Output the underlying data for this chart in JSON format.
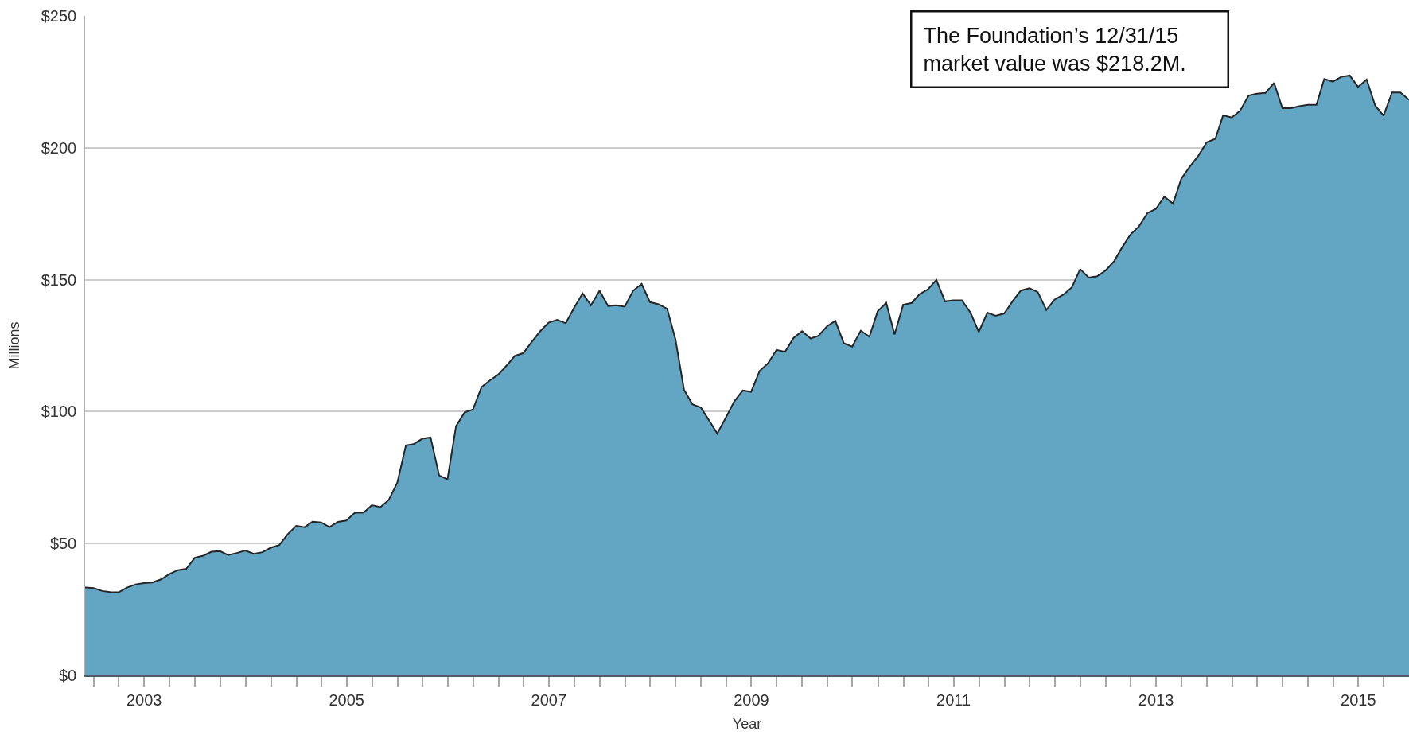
{
  "chart_data": {
    "type": "area",
    "xlabel": "Year",
    "ylabel": "Millions",
    "annotations": [
      "The Foundation’s 12/31/15\nmarket value was $218.2M."
    ],
    "x": [
      "2002-11-30",
      "2002-12-31",
      "2003-01-31",
      "2003-02-28",
      "2003-03-31",
      "2003-04-30",
      "2003-05-31",
      "2003-06-30",
      "2003-07-31",
      "2003-08-31",
      "2003-09-30",
      "2003-10-31",
      "2003-11-30",
      "2003-12-31",
      "2004-01-31",
      "2004-02-29",
      "2004-03-31",
      "2004-04-30",
      "2004-05-31",
      "2004-06-30",
      "2004-07-31",
      "2004-08-31",
      "2004-09-30",
      "2004-10-31",
      "2004-11-30",
      "2004-12-31",
      "2005-01-31",
      "2005-02-28",
      "2005-03-31",
      "2005-04-30",
      "2005-05-31",
      "2005-06-30",
      "2005-07-31",
      "2005-08-31",
      "2005-09-30",
      "2005-10-31",
      "2005-11-30",
      "2005-12-31",
      "2006-01-31",
      "2006-02-28",
      "2006-03-31",
      "2006-04-30",
      "2006-05-31",
      "2006-06-30",
      "2006-07-31",
      "2006-08-31",
      "2006-09-30",
      "2006-10-31",
      "2006-11-30",
      "2006-12-31",
      "2007-01-31",
      "2007-02-28",
      "2007-03-31",
      "2007-04-30",
      "2007-05-31",
      "2007-06-30",
      "2007-07-31",
      "2007-08-31",
      "2007-09-30",
      "2007-10-31",
      "2007-11-30",
      "2007-12-31",
      "2008-01-31",
      "2008-02-29",
      "2008-03-31",
      "2008-04-30",
      "2008-05-31",
      "2008-06-30",
      "2008-07-31",
      "2008-08-31",
      "2008-09-30",
      "2008-10-31",
      "2008-11-30",
      "2008-12-31",
      "2009-01-31",
      "2009-02-28",
      "2009-03-31",
      "2009-04-30",
      "2009-05-31",
      "2009-06-30",
      "2009-07-31",
      "2009-08-31",
      "2009-09-30",
      "2009-10-31",
      "2009-11-30",
      "2009-12-31",
      "2010-01-31",
      "2010-02-28",
      "2010-03-31",
      "2010-04-30",
      "2010-05-31",
      "2010-06-30",
      "2010-07-31",
      "2010-08-31",
      "2010-09-30",
      "2010-10-31",
      "2010-11-30",
      "2010-12-31",
      "2011-01-31",
      "2011-02-28",
      "2011-03-31",
      "2011-04-30",
      "2011-05-31",
      "2011-06-30",
      "2011-07-31",
      "2011-08-31",
      "2011-09-30",
      "2011-10-31",
      "2011-11-30",
      "2011-12-31",
      "2012-01-31",
      "2012-02-29",
      "2012-03-31",
      "2012-04-30",
      "2012-05-31",
      "2012-06-30",
      "2012-07-31",
      "2012-08-31",
      "2012-09-30",
      "2012-10-31",
      "2012-11-30",
      "2012-12-31",
      "2013-01-31",
      "2013-02-28",
      "2013-03-31",
      "2013-04-30",
      "2013-05-31",
      "2013-06-30",
      "2013-07-31",
      "2013-08-31",
      "2013-09-30",
      "2013-10-31",
      "2013-11-30",
      "2013-12-31",
      "2014-01-31",
      "2014-02-28",
      "2014-03-31",
      "2014-04-30",
      "2014-05-31",
      "2014-06-30",
      "2014-07-31",
      "2014-08-31",
      "2014-09-30",
      "2014-10-31",
      "2014-11-30",
      "2014-12-31",
      "2015-01-31",
      "2015-02-28",
      "2015-03-31",
      "2015-04-30",
      "2015-05-31",
      "2015-06-30",
      "2015-07-31",
      "2015-08-31",
      "2015-09-30",
      "2015-10-31",
      "2015-11-30",
      "2015-12-31"
    ],
    "series": [
      {
        "color": "#63a6c4",
        "values": [
          33.3,
          33.1,
          32.0,
          31.6,
          31.5,
          33.3,
          34.5,
          35.0,
          35.2,
          36.4,
          38.4,
          39.9,
          40.4,
          44.6,
          45.4,
          46.9,
          47.1,
          45.6,
          46.4,
          47.3,
          46.1,
          46.7,
          48.4,
          49.4,
          53.5,
          56.7,
          56.2,
          58.3,
          58.0,
          56.2,
          58.2,
          58.7,
          61.7,
          61.7,
          64.5,
          63.8,
          66.5,
          73.1,
          87.2,
          87.7,
          89.7,
          90.2,
          75.8,
          74.3,
          94.5,
          99.7,
          100.8,
          109.3,
          111.8,
          114.1,
          117.6,
          121.1,
          122.2,
          126.4,
          130.5,
          133.7,
          134.8,
          133.5,
          139.3,
          144.8,
          140.3,
          145.8,
          140.0,
          140.3,
          139.8,
          145.8,
          148.4,
          141.5,
          140.7,
          139.0,
          127.4,
          108.3,
          102.8,
          101.5,
          96.4,
          91.7,
          97.7,
          103.8,
          108.0,
          107.5,
          115.4,
          118.4,
          123.4,
          122.7,
          127.9,
          130.5,
          127.7,
          128.7,
          132.3,
          134.4,
          125.9,
          124.6,
          130.7,
          128.4,
          138.0,
          141.2,
          129.2,
          140.5,
          141.2,
          144.5,
          146.4,
          149.9,
          141.8,
          142.2,
          142.2,
          137.5,
          130.2,
          137.5,
          136.3,
          137.2,
          142.0,
          145.9,
          146.8,
          145.3,
          138.5,
          142.5,
          144.3,
          147.1,
          154.0,
          150.8,
          151.3,
          153.5,
          157.1,
          162.2,
          167.2,
          170.2,
          175.3,
          176.8,
          181.5,
          178.8,
          188.3,
          192.9,
          196.9,
          202.1,
          203.4,
          212.3,
          211.5,
          214.0,
          219.8,
          220.5,
          220.8,
          224.6,
          215.0,
          215.0,
          215.8,
          216.3,
          216.3,
          226.1,
          225.1,
          226.9,
          227.4,
          223.1,
          225.9,
          216.0,
          212.2,
          221.0,
          221.0,
          218.2
        ]
      }
    ],
    "xlim": [
      "2002-11-30",
      "2015-12-31"
    ],
    "xticks": [
      {
        "value": "2003-01-01",
        "label": null
      },
      {
        "value": "2003-04-01",
        "label": null
      },
      {
        "value": "2003-07-01",
        "label": "2003"
      },
      {
        "value": "2003-10-01",
        "label": null
      },
      {
        "value": "2004-01-01",
        "label": null
      },
      {
        "value": "2004-04-01",
        "label": null
      },
      {
        "value": "2004-07-01",
        "label": null
      },
      {
        "value": "2004-10-01",
        "label": null
      },
      {
        "value": "2005-01-01",
        "label": null
      },
      {
        "value": "2005-04-01",
        "label": null
      },
      {
        "value": "2005-07-01",
        "label": "2005"
      },
      {
        "value": "2005-10-01",
        "label": null
      },
      {
        "value": "2006-01-01",
        "label": null
      },
      {
        "value": "2006-04-01",
        "label": null
      },
      {
        "value": "2006-07-01",
        "label": null
      },
      {
        "value": "2006-10-01",
        "label": null
      },
      {
        "value": "2007-01-01",
        "label": null
      },
      {
        "value": "2007-04-01",
        "label": null
      },
      {
        "value": "2007-07-01",
        "label": "2007"
      },
      {
        "value": "2007-10-01",
        "label": null
      },
      {
        "value": "2008-01-01",
        "label": null
      },
      {
        "value": "2008-04-01",
        "label": null
      },
      {
        "value": "2008-07-01",
        "label": null
      },
      {
        "value": "2008-10-01",
        "label": null
      },
      {
        "value": "2009-01-01",
        "label": null
      },
      {
        "value": "2009-04-01",
        "label": null
      },
      {
        "value": "2009-07-01",
        "label": "2009"
      },
      {
        "value": "2009-10-01",
        "label": null
      },
      {
        "value": "2010-01-01",
        "label": null
      },
      {
        "value": "2010-04-01",
        "label": null
      },
      {
        "value": "2010-07-01",
        "label": null
      },
      {
        "value": "2010-10-01",
        "label": null
      },
      {
        "value": "2011-01-01",
        "label": null
      },
      {
        "value": "2011-04-01",
        "label": null
      },
      {
        "value": "2011-07-01",
        "label": "2011"
      },
      {
        "value": "2011-10-01",
        "label": null
      },
      {
        "value": "2012-01-01",
        "label": null
      },
      {
        "value": "2012-04-01",
        "label": null
      },
      {
        "value": "2012-07-01",
        "label": null
      },
      {
        "value": "2012-10-01",
        "label": null
      },
      {
        "value": "2013-01-01",
        "label": null
      },
      {
        "value": "2013-04-01",
        "label": null
      },
      {
        "value": "2013-07-01",
        "label": "2013"
      },
      {
        "value": "2013-10-01",
        "label": null
      },
      {
        "value": "2014-01-01",
        "label": null
      },
      {
        "value": "2014-04-01",
        "label": null
      },
      {
        "value": "2014-07-01",
        "label": null
      },
      {
        "value": "2014-10-01",
        "label": null
      },
      {
        "value": "2015-01-01",
        "label": null
      },
      {
        "value": "2015-04-01",
        "label": null
      },
      {
        "value": "2015-07-01",
        "label": "2015"
      },
      {
        "value": "2015-10-01",
        "label": null
      }
    ],
    "ylim": [
      0,
      250
    ],
    "yticks": [
      {
        "value": 0,
        "label": "$0"
      },
      {
        "value": 50,
        "label": "$50"
      },
      {
        "value": 100,
        "label": "$100"
      },
      {
        "value": 150,
        "label": "$150"
      },
      {
        "value": 200,
        "label": "$200"
      },
      {
        "value": 250,
        "label": "$250"
      }
    ],
    "grid": "y"
  }
}
